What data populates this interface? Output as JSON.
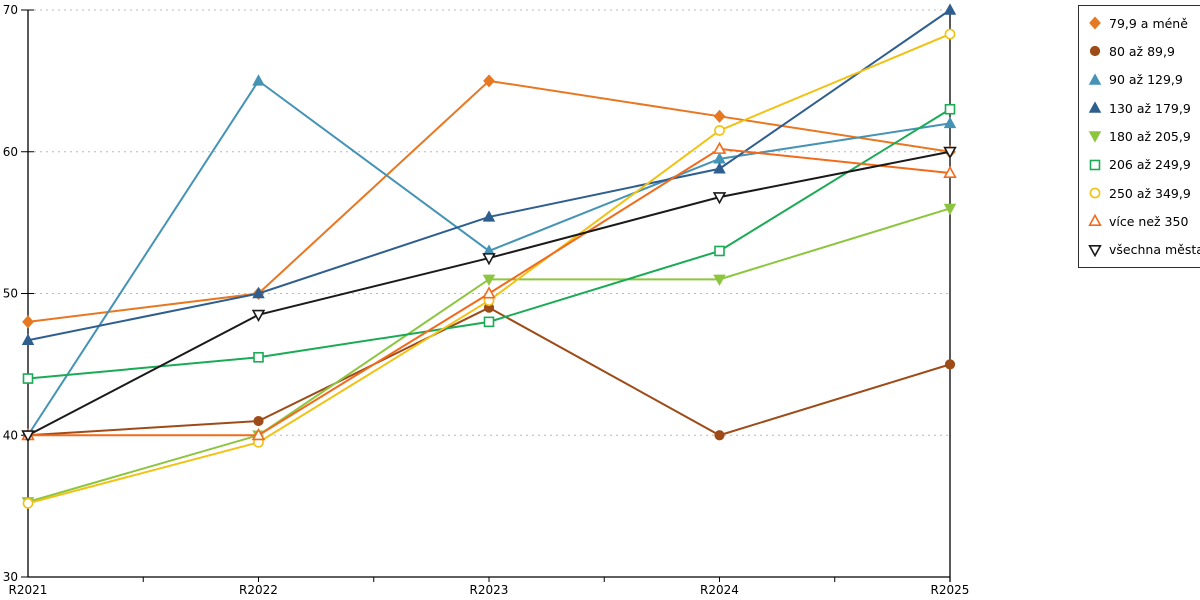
{
  "chart_data": {
    "type": "line",
    "title": "",
    "xlabel": "",
    "ylabel": "",
    "categories": [
      "R2021",
      "R2022",
      "R2023",
      "R2024",
      "R2025"
    ],
    "ylim": [
      30,
      70
    ],
    "yticks": [
      30,
      40,
      50,
      60,
      70
    ],
    "grid": "horizontal-dashed",
    "legend_position": "right",
    "series": [
      {
        "name": "79,9 a méně",
        "color": "#E87722",
        "marker": "diamond-filled",
        "values": [
          48,
          50,
          65,
          62.5,
          60
        ]
      },
      {
        "name": "80 až 89,9",
        "color": "#9E4B17",
        "marker": "circle-filled",
        "values": [
          40,
          41,
          49,
          40,
          45
        ]
      },
      {
        "name": "90 až 129,9",
        "color": "#4593B5",
        "marker": "triangle-up-filled",
        "values": [
          40,
          65,
          53,
          59.5,
          62
        ]
      },
      {
        "name": "130 až 179,9",
        "color": "#2F5F8F",
        "marker": "triangle-up-filled",
        "values": [
          46.7,
          50,
          55.4,
          58.8,
          70
        ]
      },
      {
        "name": "180 až 205,9",
        "color": "#8CC63F",
        "marker": "triangle-down-filled",
        "values": [
          35.3,
          40,
          51,
          51,
          56
        ]
      },
      {
        "name": "206 až 249,9",
        "color": "#1BAA55",
        "marker": "square-hollow",
        "values": [
          44,
          45.5,
          48,
          53,
          63
        ]
      },
      {
        "name": "250 až 349,9",
        "color": "#F2C112",
        "marker": "circle-hollow",
        "values": [
          35.2,
          39.5,
          49.5,
          61.5,
          68.3
        ]
      },
      {
        "name": "více než 350",
        "color": "#F26A1B",
        "marker": "triangle-up-hollow",
        "values": [
          40,
          40,
          50,
          60.2,
          58.5
        ]
      },
      {
        "name": "všechna města",
        "color": "#1A1A1A",
        "marker": "triangle-down-hollow",
        "values": [
          40,
          48.5,
          52.5,
          56.8,
          60
        ]
      }
    ]
  }
}
